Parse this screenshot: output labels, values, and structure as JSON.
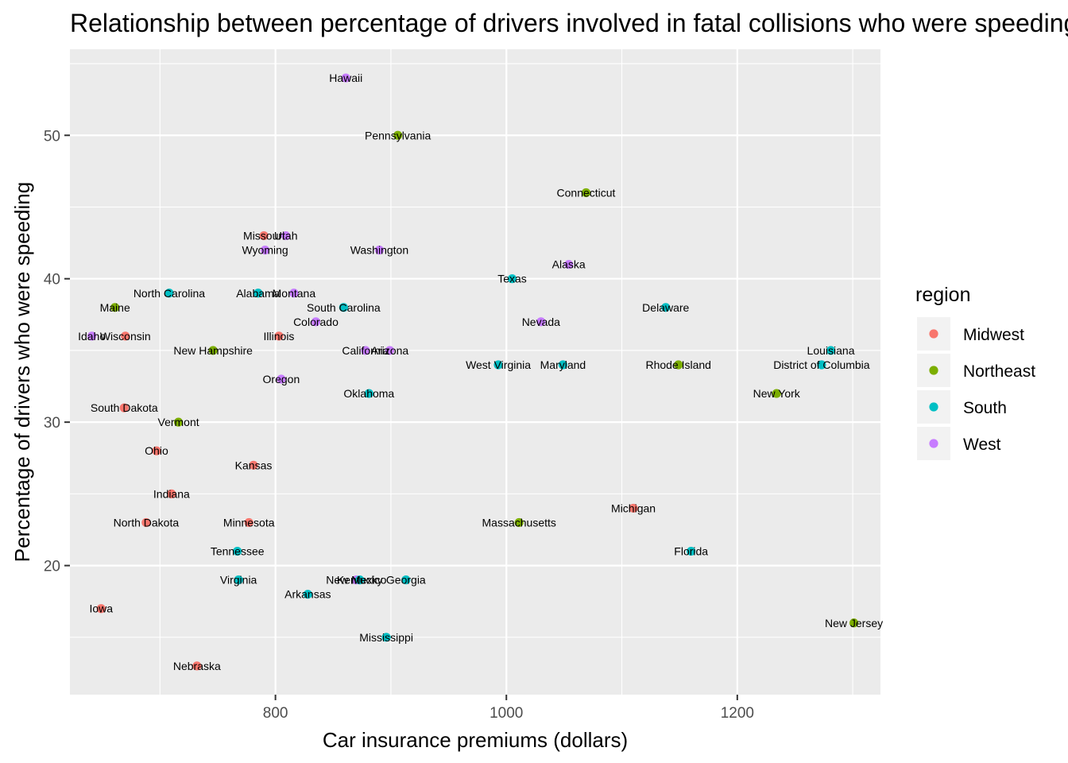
{
  "chart_data": {
    "type": "scatter",
    "title": "Relationship between percentage of drivers involved in fatal collisions who were speeding and car insurance premiums",
    "xlabel": "Car insurance premiums (dollars)",
    "ylabel": "Percentage of drivers who were speeding",
    "xlim": [
      622,
      1324
    ],
    "ylim": [
      11,
      56
    ],
    "x_ticks": [
      800,
      1000,
      1200
    ],
    "y_ticks": [
      20,
      30,
      40,
      50
    ],
    "x_tick_labels": [
      "800",
      "1000",
      "1200"
    ],
    "y_tick_labels": [
      "20",
      "30",
      "40",
      "50"
    ],
    "grid": true,
    "legend": {
      "title": "region",
      "position": "right",
      "entries": [
        {
          "name": "Midwest",
          "color": "#F8766D"
        },
        {
          "name": "Northeast",
          "color": "#7CAE00"
        },
        {
          "name": "South",
          "color": "#00BFC4"
        },
        {
          "name": "West",
          "color": "#C77CFF"
        }
      ]
    },
    "points": [
      {
        "label": "Hawaii",
        "region": "West",
        "x": 861,
        "y": 54
      },
      {
        "label": "Pennsylvania",
        "region": "Northeast",
        "x": 906,
        "y": 50
      },
      {
        "label": "Connecticut",
        "region": "Northeast",
        "x": 1069,
        "y": 46
      },
      {
        "label": "Missouri",
        "region": "Midwest",
        "x": 790,
        "y": 43
      },
      {
        "label": "Utah",
        "region": "West",
        "x": 809,
        "y": 43
      },
      {
        "label": "Wyoming",
        "region": "West",
        "x": 791,
        "y": 42
      },
      {
        "label": "Washington",
        "region": "West",
        "x": 890,
        "y": 42
      },
      {
        "label": "Alaska",
        "region": "West",
        "x": 1054,
        "y": 41
      },
      {
        "label": "Texas",
        "region": "South",
        "x": 1005,
        "y": 40
      },
      {
        "label": "North Carolina",
        "region": "South",
        "x": 708,
        "y": 39
      },
      {
        "label": "Alabama",
        "region": "South",
        "x": 785,
        "y": 39
      },
      {
        "label": "Montana",
        "region": "West",
        "x": 816,
        "y": 39
      },
      {
        "label": "Maine",
        "region": "Northeast",
        "x": 661,
        "y": 38
      },
      {
        "label": "South Carolina",
        "region": "South",
        "x": 859,
        "y": 38
      },
      {
        "label": "Delaware",
        "region": "South",
        "x": 1138,
        "y": 38
      },
      {
        "label": "Colorado",
        "region": "West",
        "x": 835,
        "y": 37
      },
      {
        "label": "Nevada",
        "region": "West",
        "x": 1030,
        "y": 37
      },
      {
        "label": "Idaho",
        "region": "West",
        "x": 641,
        "y": 36
      },
      {
        "label": "Wisconsin",
        "region": "Midwest",
        "x": 670,
        "y": 36
      },
      {
        "label": "Illinois",
        "region": "Midwest",
        "x": 803,
        "y": 36
      },
      {
        "label": "New Hampshire",
        "region": "Northeast",
        "x": 746,
        "y": 35
      },
      {
        "label": "California",
        "region": "West",
        "x": 878,
        "y": 35
      },
      {
        "label": "Arizona",
        "region": "West",
        "x": 899,
        "y": 35
      },
      {
        "label": "Louisiana",
        "region": "South",
        "x": 1281,
        "y": 35
      },
      {
        "label": "West Virginia",
        "region": "South",
        "x": 993,
        "y": 34
      },
      {
        "label": "Maryland",
        "region": "South",
        "x": 1049,
        "y": 34
      },
      {
        "label": "Rhode Island",
        "region": "Northeast",
        "x": 1149,
        "y": 34
      },
      {
        "label": "District of Columbia",
        "region": "South",
        "x": 1273,
        "y": 34
      },
      {
        "label": "Oregon",
        "region": "West",
        "x": 805,
        "y": 33
      },
      {
        "label": "Oklahoma",
        "region": "South",
        "x": 881,
        "y": 32
      },
      {
        "label": "New York",
        "region": "Northeast",
        "x": 1234,
        "y": 32
      },
      {
        "label": "South Dakota",
        "region": "Midwest",
        "x": 669,
        "y": 31
      },
      {
        "label": "Vermont",
        "region": "Northeast",
        "x": 716,
        "y": 30
      },
      {
        "label": "Ohio",
        "region": "Midwest",
        "x": 697,
        "y": 28
      },
      {
        "label": "Kansas",
        "region": "Midwest",
        "x": 781,
        "y": 27
      },
      {
        "label": "Indiana",
        "region": "Midwest",
        "x": 710,
        "y": 25
      },
      {
        "label": "Michigan",
        "region": "Midwest",
        "x": 1110,
        "y": 24
      },
      {
        "label": "North Dakota",
        "region": "Midwest",
        "x": 688,
        "y": 23
      },
      {
        "label": "Minnesota",
        "region": "Midwest",
        "x": 777,
        "y": 23
      },
      {
        "label": "Massachusetts",
        "region": "Northeast",
        "x": 1011,
        "y": 23
      },
      {
        "label": "Tennessee",
        "region": "South",
        "x": 767,
        "y": 21
      },
      {
        "label": "Florida",
        "region": "South",
        "x": 1160,
        "y": 21
      },
      {
        "label": "Virginia",
        "region": "South",
        "x": 768,
        "y": 19
      },
      {
        "label": "New Mexico",
        "region": "West",
        "x": 870,
        "y": 19
      },
      {
        "label": "Kentucky",
        "region": "South",
        "x": 873,
        "y": 19
      },
      {
        "label": "Georgia",
        "region": "South",
        "x": 913,
        "y": 19
      },
      {
        "label": "Arkansas",
        "region": "South",
        "x": 828,
        "y": 18
      },
      {
        "label": "Iowa",
        "region": "Midwest",
        "x": 649,
        "y": 17
      },
      {
        "label": "New Jersey",
        "region": "Northeast",
        "x": 1301,
        "y": 16
      },
      {
        "label": "Mississippi",
        "region": "South",
        "x": 896,
        "y": 15
      },
      {
        "label": "Nebraska",
        "region": "Midwest",
        "x": 732,
        "y": 13
      }
    ]
  }
}
